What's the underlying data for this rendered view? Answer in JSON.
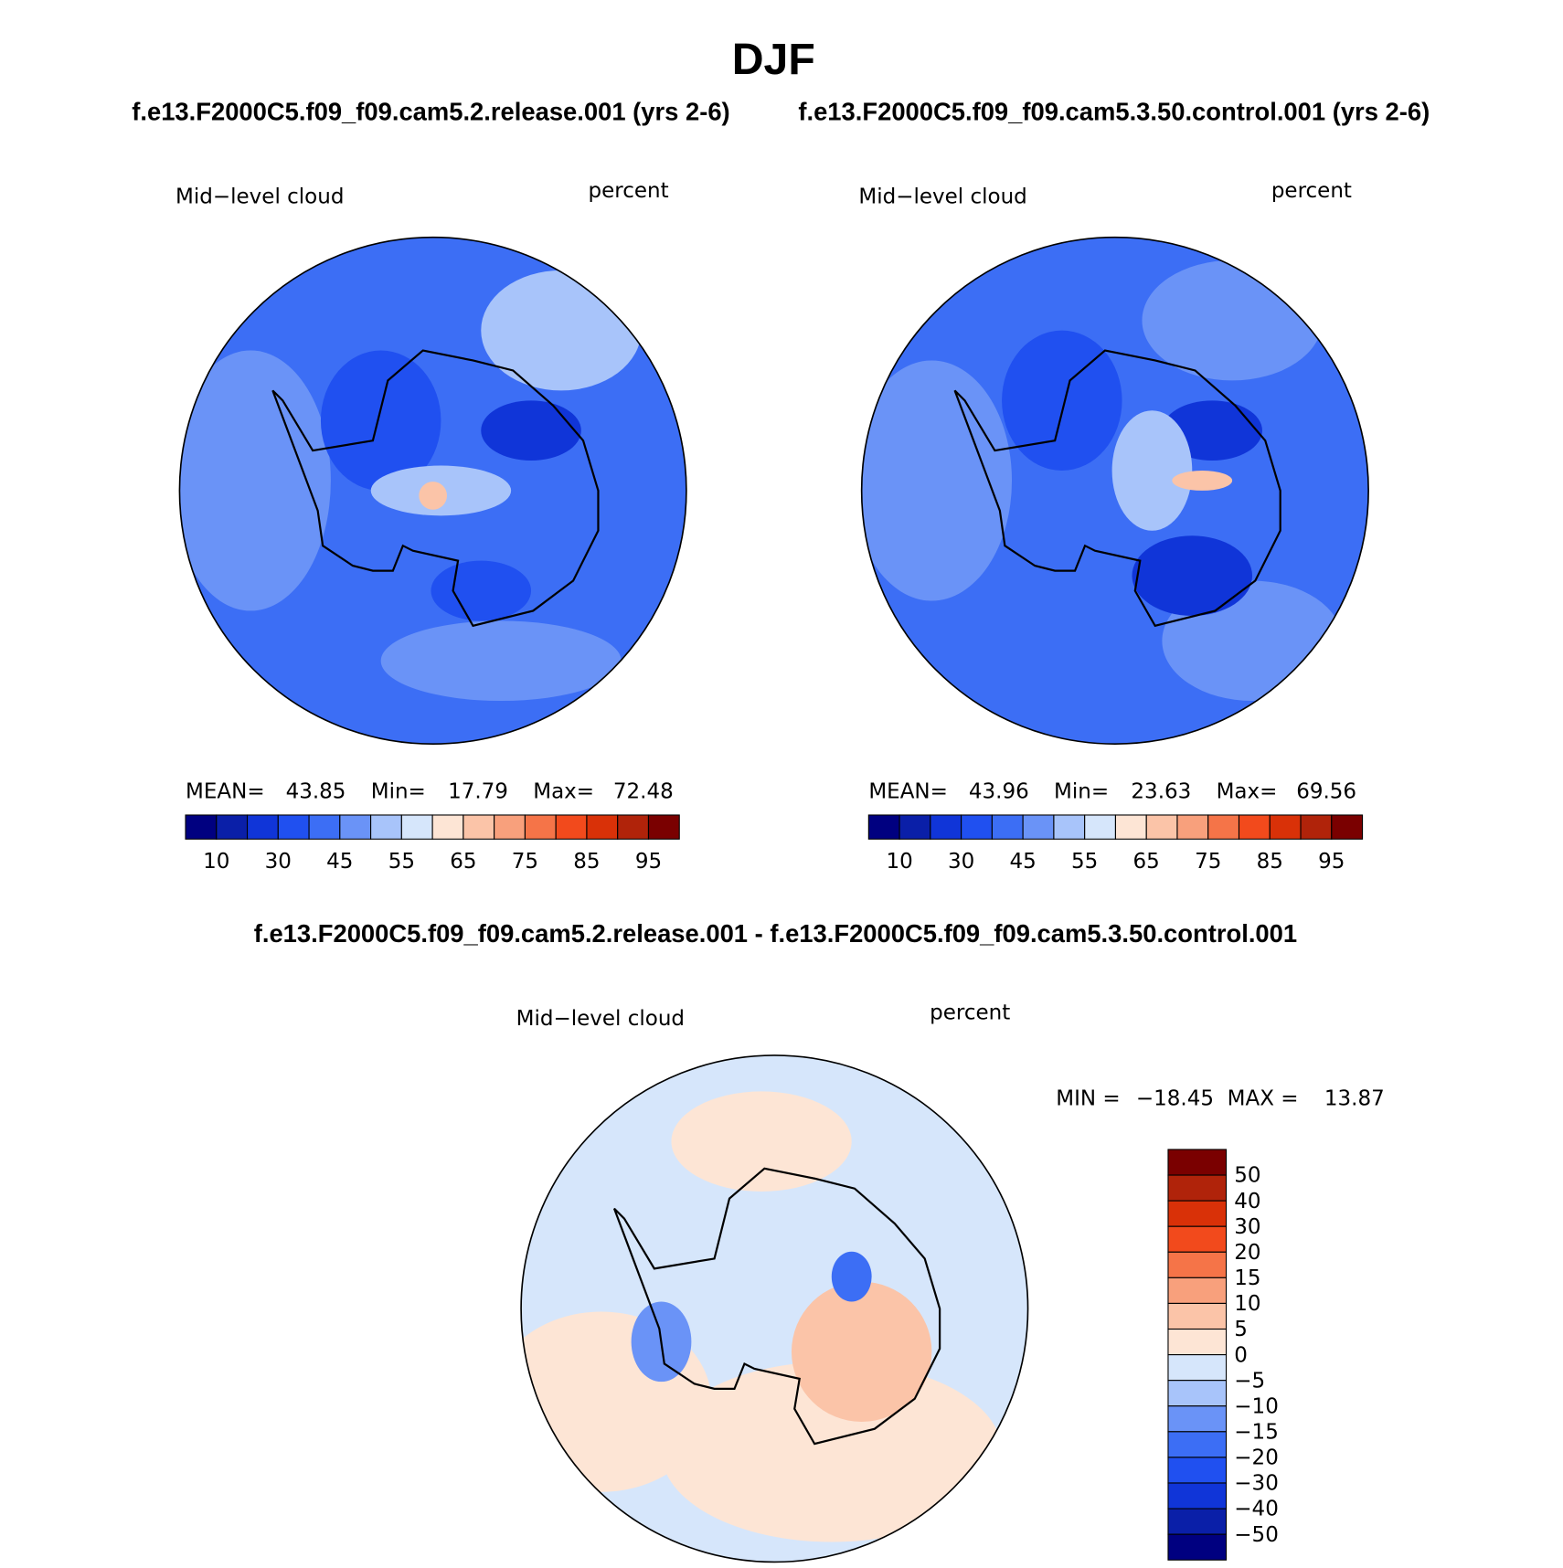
{
  "header": {
    "title": "DJF",
    "left_subtitle": "f.e13.F2000C5.f09_f09.cam5.2.release.001 (yrs 2-6)",
    "right_subtitle": "f.e13.F2000C5.f09_f09.cam5.3.50.control.001 (yrs 2-6)",
    "diff_subtitle": "f.e13.F2000C5.f09_f09.cam5.2.release.001 - f.e13.F2000C5.f09_f09.cam5.3.50.control.001"
  },
  "panels": [
    {
      "variable": "Mid−level cloud",
      "units": "percent",
      "mean_label": "MEAN=",
      "mean": "43.85",
      "min_label": "Min=",
      "min": "17.79",
      "max_label": "Max=",
      "max": "72.48"
    },
    {
      "variable": "Mid−level cloud",
      "units": "percent",
      "mean_label": "MEAN=",
      "mean": "43.96",
      "min_label": "Min=",
      "min": "23.63",
      "max_label": "Max=",
      "max": "69.56"
    }
  ],
  "colorbar": {
    "labels": [
      "10",
      "30",
      "45",
      "55",
      "65",
      "75",
      "85",
      "95"
    ],
    "colors": [
      "#000080",
      "#0a1fa8",
      "#1035d8",
      "#2050f0",
      "#3c6ef5",
      "#6a93f7",
      "#a8c4fa",
      "#d6e6fb",
      "#fde5d5",
      "#fbc4a8",
      "#f8a07c",
      "#f57448",
      "#f24a1c",
      "#d93108",
      "#b0230a",
      "#7a0000"
    ]
  },
  "difference": {
    "variable": "Mid−level cloud",
    "units": "percent",
    "min_label": "MIN =",
    "min": "−18.45",
    "max_label": "MAX =",
    "max": "13.87",
    "colorbar": {
      "labels": [
        "50",
        "40",
        "30",
        "20",
        "15",
        "10",
        "5",
        "0",
        "−5",
        "−10",
        "−15",
        "−20",
        "−30",
        "−40",
        "−50"
      ],
      "colors": [
        "#7a0000",
        "#b0230a",
        "#d93108",
        "#f24a1c",
        "#f57448",
        "#f8a07c",
        "#fbc4a8",
        "#fde5d5",
        "#d6e6fb",
        "#a8c4fa",
        "#6a93f7",
        "#3c6ef5",
        "#2050f0",
        "#1035d8",
        "#0a1fa8",
        "#000080"
      ]
    }
  }
}
